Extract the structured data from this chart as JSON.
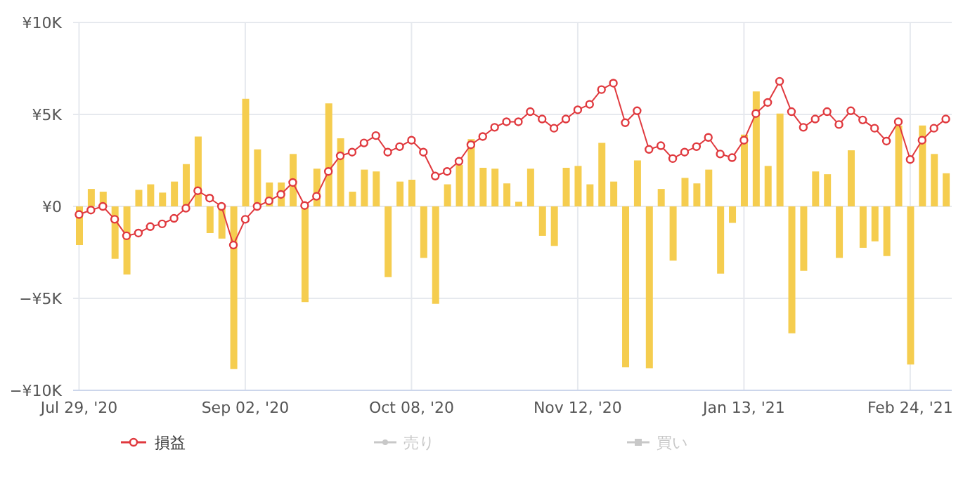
{
  "chart_data": {
    "type": "bar",
    "categories": [
      "Jul 29, '20",
      null,
      null,
      null,
      null,
      null,
      null,
      null,
      null,
      null,
      null,
      null,
      null,
      null,
      "Sep 02, '20",
      null,
      null,
      null,
      null,
      null,
      null,
      null,
      null,
      null,
      null,
      null,
      null,
      null,
      "Oct 08, '20",
      null,
      null,
      null,
      null,
      null,
      null,
      null,
      null,
      null,
      null,
      null,
      null,
      null,
      "Nov 12, '20",
      null,
      null,
      null,
      null,
      null,
      null,
      null,
      null,
      null,
      null,
      null,
      null,
      null,
      "Jan 13, '21",
      null,
      null,
      null,
      null,
      null,
      null,
      null,
      null,
      null,
      null,
      null,
      null,
      null,
      "Feb 24, '21",
      null,
      null,
      null
    ],
    "series": [
      {
        "color": "#f5cd4f",
        "values": [
          -2100,
          950,
          800,
          -2850,
          -3700,
          900,
          1200,
          750,
          1350,
          2300,
          3800,
          -1450,
          -1750,
          -8850,
          5850,
          3100,
          1300,
          1300,
          2850,
          -5200,
          2050,
          5600,
          3700,
          800,
          2000,
          1900,
          -3850,
          1350,
          1450,
          -2800,
          -5300,
          1200,
          2250,
          3650,
          2100,
          2050,
          1250,
          250,
          2050,
          -1600,
          -2150,
          2100,
          2200,
          1200,
          3450,
          1350,
          -8750,
          2500,
          -8800,
          950,
          -2950,
          1550,
          1250,
          2000,
          -3650,
          -900,
          3900,
          6250,
          2200,
          5050,
          -6900,
          -3500,
          1900,
          1750,
          -2800,
          3050,
          -2250,
          -1900,
          -2700,
          4400,
          -8600,
          4400,
          2850,
          1800
        ]
      },
      {
        "type": "line",
        "name": "損益",
        "color": "#e0393e",
        "marker": "circle",
        "values": [
          -440,
          -200,
          0,
          -700,
          -1600,
          -1450,
          -1100,
          -950,
          -650,
          -100,
          850,
          450,
          0,
          -2100,
          -700,
          0,
          300,
          650,
          1300,
          50,
          550,
          1900,
          2750,
          2950,
          3450,
          3850,
          2950,
          3250,
          3600,
          2950,
          1650,
          1900,
          2450,
          3350,
          3800,
          4300,
          4600,
          4600,
          5150,
          4750,
          4250,
          4750,
          5250,
          5550,
          6350,
          6700,
          4550,
          5200,
          3100,
          3300,
          2600,
          2950,
          3250,
          3750,
          2850,
          2650,
          3600,
          5050,
          5650,
          6800,
          5150,
          4300,
          4750,
          5150,
          4450,
          5200,
          4700,
          4250,
          3550,
          4600,
          2550,
          3600,
          4250,
          4750
        ]
      }
    ],
    "ylim": [
      -10000,
      10000
    ],
    "yticks": [
      {
        "value": -10000,
        "label": "−¥10K"
      },
      {
        "value": -5000,
        "label": "−¥5K"
      },
      {
        "value": 0,
        "label": "¥0"
      },
      {
        "value": 5000,
        "label": "¥5K"
      },
      {
        "value": 10000,
        "label": "¥10K"
      }
    ],
    "grid": true,
    "legend": "bottom",
    "annotations": [
      "売り",
      "買い"
    ]
  }
}
